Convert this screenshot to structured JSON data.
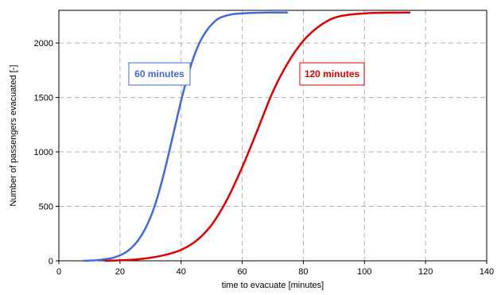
{
  "chart_data": {
    "type": "line",
    "title": "",
    "xlabel": "time to evacuate [minutes]",
    "ylabel": "Number of passengers evacuated [-]",
    "xlim": [
      0,
      140
    ],
    "ylim": [
      0,
      2300
    ],
    "x_ticks": [
      0,
      20,
      40,
      60,
      80,
      100,
      120,
      140
    ],
    "y_ticks": [
      0,
      500,
      1000,
      1500,
      2000
    ],
    "grid": true,
    "legend": "none",
    "series": [
      {
        "name": "60 minutes",
        "color": "#4169e1",
        "x": [
          8,
          10,
          12,
          14,
          16,
          18,
          20,
          22,
          24,
          26,
          28,
          30,
          32,
          34,
          36,
          38,
          40,
          42,
          44,
          46,
          48,
          50,
          52,
          54,
          56,
          58,
          60,
          62,
          65,
          70,
          75
        ],
        "y": [
          0,
          2,
          5,
          10,
          18,
          30,
          50,
          80,
          125,
          190,
          280,
          400,
          560,
          760,
          990,
          1230,
          1470,
          1680,
          1860,
          2000,
          2100,
          2170,
          2220,
          2245,
          2260,
          2268,
          2272,
          2275,
          2278,
          2280,
          2280
        ]
      },
      {
        "name": "120 minutes",
        "color": "#e00000",
        "x": [
          15,
          20,
          25,
          30,
          35,
          40,
          45,
          50,
          55,
          60,
          65,
          70,
          75,
          80,
          85,
          90,
          95,
          100,
          105,
          110,
          115
        ],
        "y": [
          0,
          5,
          12,
          28,
          55,
          100,
          185,
          330,
          560,
          860,
          1200,
          1550,
          1820,
          2020,
          2150,
          2230,
          2260,
          2272,
          2277,
          2279,
          2280
        ]
      }
    ],
    "annotations": [
      {
        "text": "60 minutes",
        "color": "#4169e1"
      },
      {
        "text": "120 minutes",
        "color": "#e00000"
      }
    ]
  }
}
